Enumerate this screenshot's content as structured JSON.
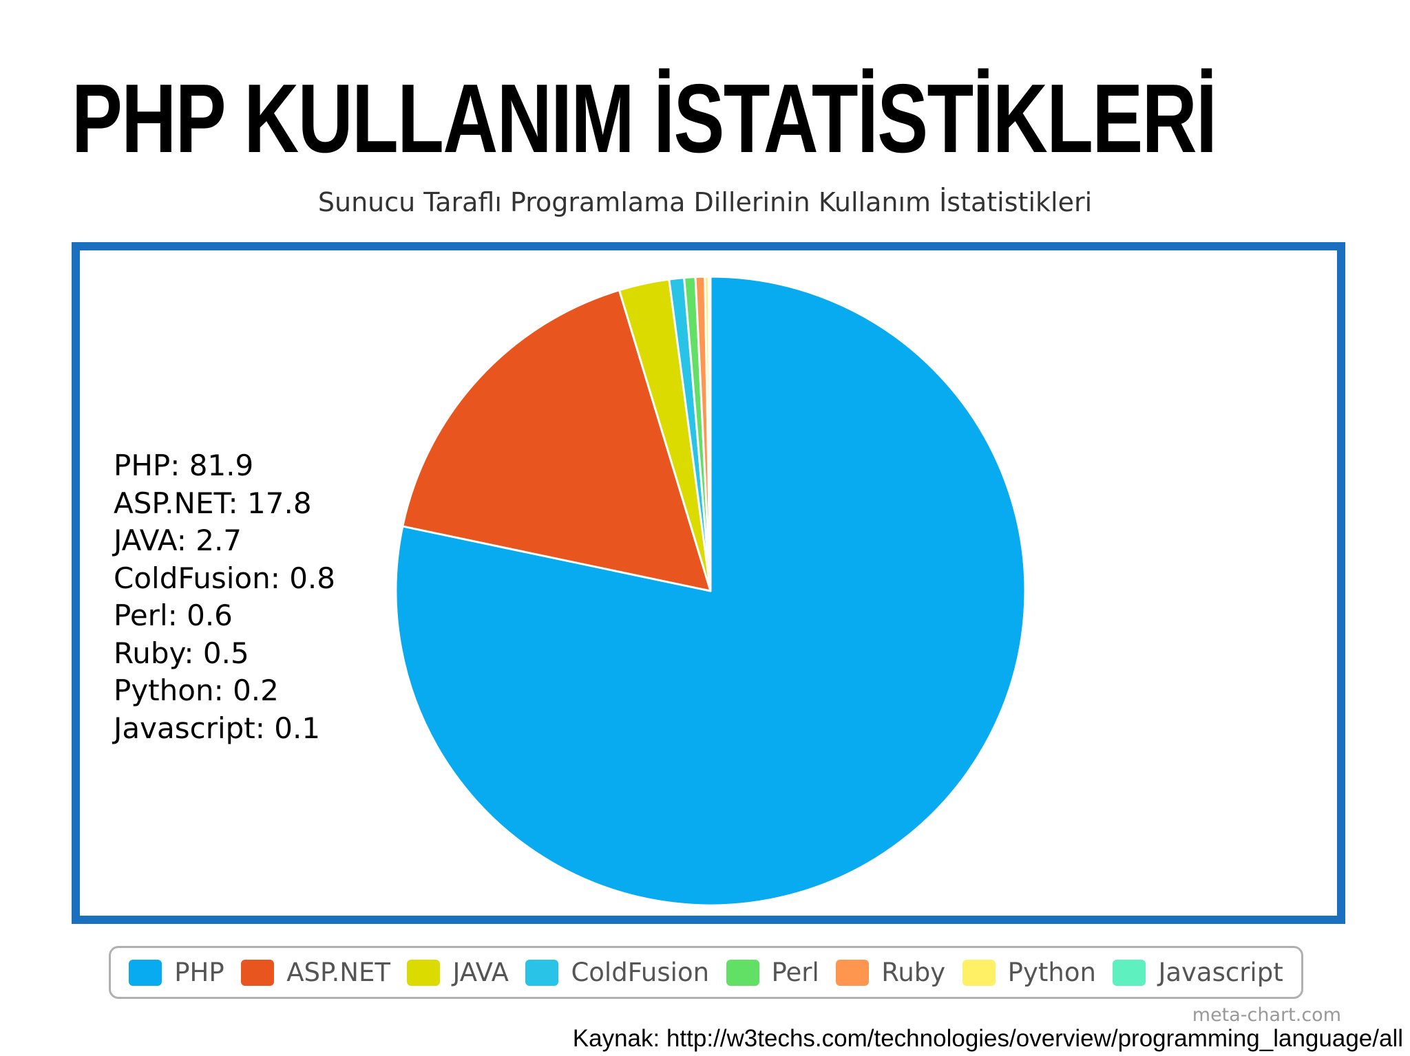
{
  "slide_title": "PHP KULLANIM İSTATİSTİKLERİ",
  "source_text": "Kaynak: http://w3techs.com/technologies/overview/programming_language/all",
  "watermark": "meta-chart.com",
  "chart_data": {
    "type": "pie",
    "title": "Sunucu Taraflı Programlama Dillerinin Kullanım İstatistikleri",
    "legend_position": "bottom",
    "slices": [
      {
        "label": "PHP",
        "value": 81.9,
        "color": "#08aaf0",
        "text": "PHP: 81.9"
      },
      {
        "label": "ASP.NET",
        "value": 17.8,
        "color": "#e9551e",
        "text": "ASP.NET: 17.8"
      },
      {
        "label": "JAVA",
        "value": 2.7,
        "color": "#dbdb00",
        "text": "JAVA: 2.7"
      },
      {
        "label": "ColdFusion",
        "value": 0.8,
        "color": "#29c3e8",
        "text": "ColdFusion: 0.8"
      },
      {
        "label": "Perl",
        "value": 0.6,
        "color": "#62e066",
        "text": "Perl: 0.6"
      },
      {
        "label": "Ruby",
        "value": 0.5,
        "color": "#ff9650",
        "text": "Ruby: 0.5"
      },
      {
        "label": "Python",
        "value": 0.2,
        "color": "#fff066",
        "text": "Python: 0.2"
      },
      {
        "label": "Javascript",
        "value": 0.1,
        "color": "#5ff0c0",
        "text": "Javascript: 0.1"
      }
    ]
  }
}
